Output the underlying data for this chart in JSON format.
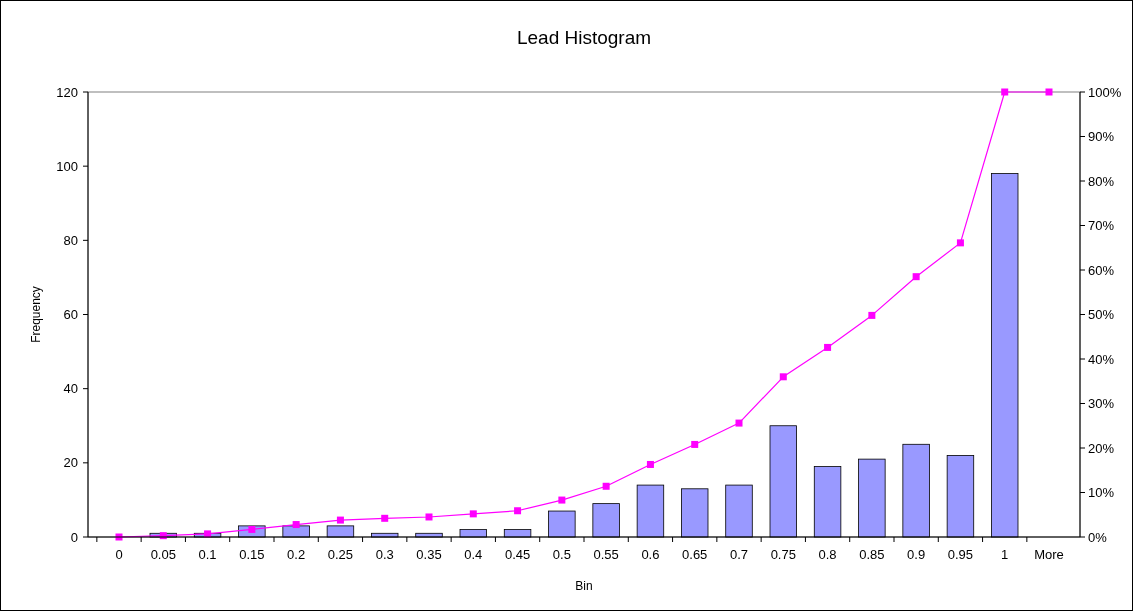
{
  "chart_data": {
    "type": "bar",
    "title": "Lead Histogram",
    "xlabel": "Bin",
    "ylabel": "Frequency",
    "categories": [
      "0",
      "0.05",
      "0.1",
      "0.15",
      "0.2",
      "0.25",
      "0.3",
      "0.35",
      "0.4",
      "0.45",
      "0.5",
      "0.55",
      "0.6",
      "0.65",
      "0.7",
      "0.75",
      "0.8",
      "0.85",
      "0.9",
      "0.95",
      "1",
      "More"
    ],
    "series": [
      {
        "color": "#9999ff",
        "values": [
          0,
          1,
          1,
          3,
          3,
          3,
          1,
          1,
          2,
          2,
          7,
          9,
          14,
          13,
          14,
          30,
          19,
          21,
          25,
          22,
          98,
          0
        ]
      },
      {
        "type": "line",
        "axis": "y2",
        "color": "#ff00ff",
        "marker": "square",
        "values": [
          0,
          0.3,
          0.7,
          1.7,
          2.8,
          3.8,
          4.2,
          4.5,
          5.2,
          5.9,
          8.3,
          11.4,
          16.3,
          20.8,
          25.6,
          36.0,
          42.6,
          49.8,
          58.5,
          66.1,
          100,
          100
        ]
      }
    ],
    "ylim": [
      0,
      120
    ],
    "yticks": [
      0,
      20,
      40,
      60,
      80,
      100,
      120
    ],
    "y2lim": [
      0,
      100
    ],
    "y2ticks": [
      {
        "value": 0,
        "label": "0%"
      },
      {
        "value": 10,
        "label": "10%"
      },
      {
        "value": 20,
        "label": "20%"
      },
      {
        "value": 30,
        "label": "30%"
      },
      {
        "value": 40,
        "label": "40%"
      },
      {
        "value": 50,
        "label": "50%"
      },
      {
        "value": 60,
        "label": "60%"
      },
      {
        "value": 70,
        "label": "70%"
      },
      {
        "value": 80,
        "label": "80%"
      },
      {
        "value": 90,
        "label": "90%"
      },
      {
        "value": 100,
        "label": "100%"
      }
    ],
    "grid": false
  }
}
